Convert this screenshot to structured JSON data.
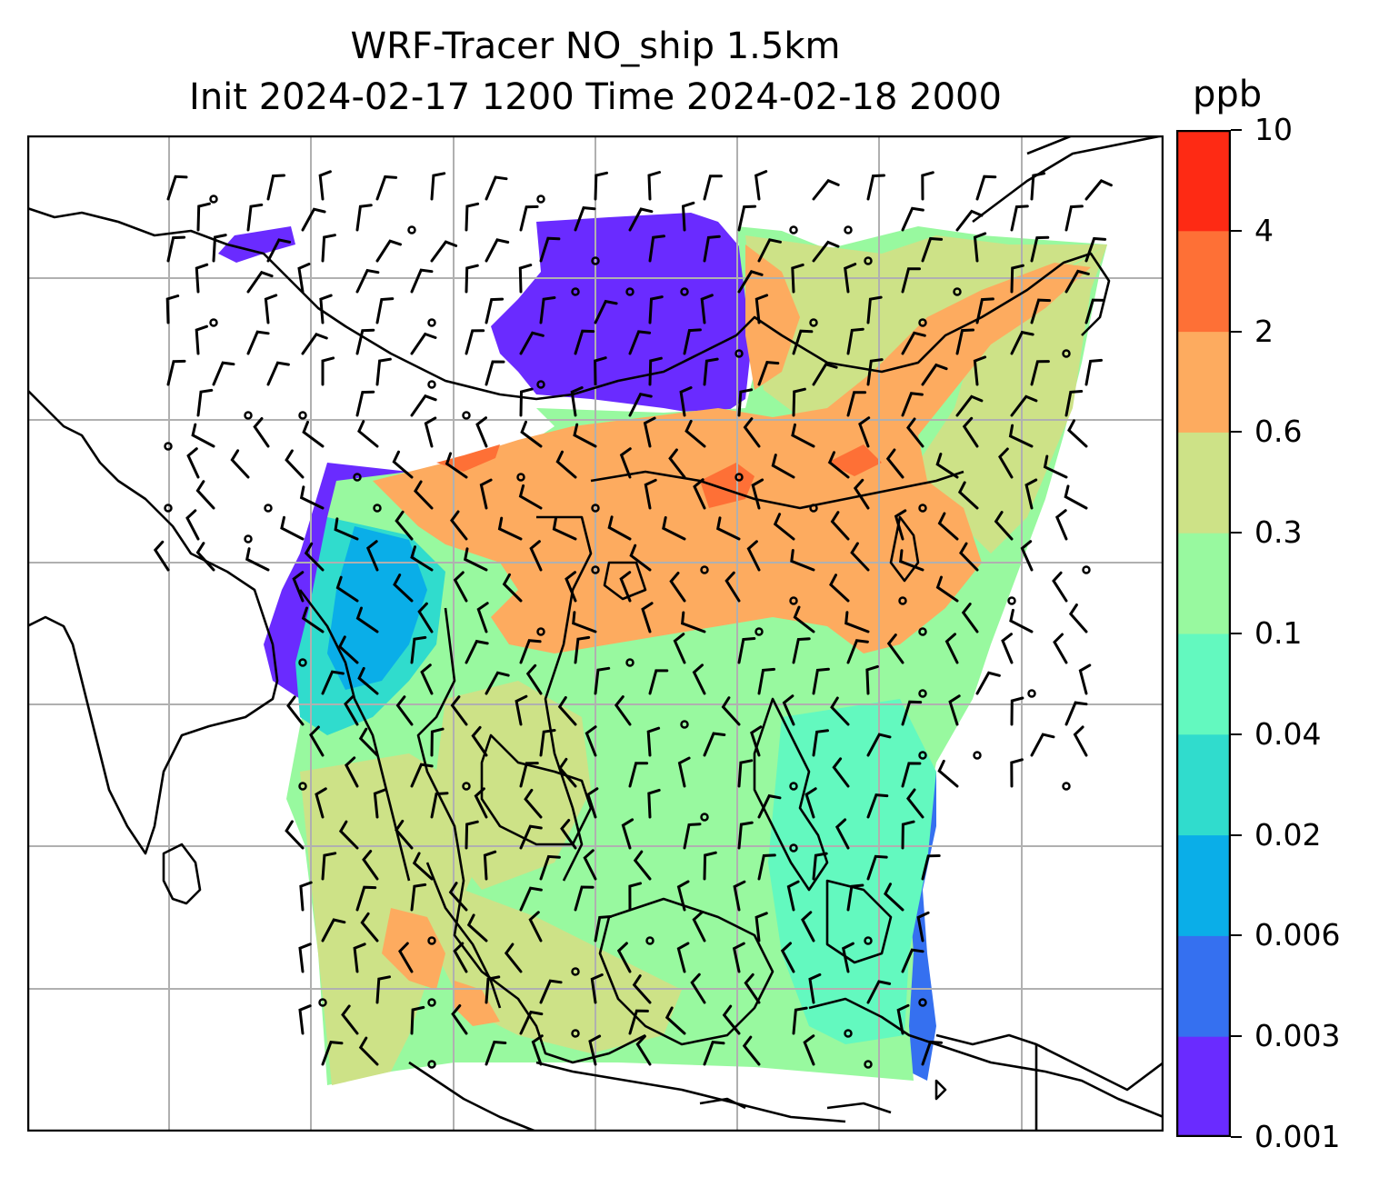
{
  "title": {
    "line1": "WRF-Tracer NO_ship 1.5km",
    "line2": "Init 2024-02-17 1200 Time 2024-02-18 2000"
  },
  "colorbar": {
    "unit": "ppb",
    "tick_labels": [
      "0.001",
      "0.003",
      "0.006",
      "0.02",
      "0.04",
      "0.1",
      "0.3",
      "0.6",
      "2",
      "4",
      "10"
    ],
    "colors": [
      "#6a2bff",
      "#3570f0",
      "#0aaee8",
      "#30dccd",
      "#63f9bf",
      "#98f99f",
      "#cde287",
      "#fdab5f",
      "#fe7036",
      "#fe2a14"
    ]
  },
  "map": {
    "background": "#ffffff",
    "gridline_color": "#b0b0b0",
    "coastline_color": "#000000",
    "wind_barb_color": "#000000"
  }
}
